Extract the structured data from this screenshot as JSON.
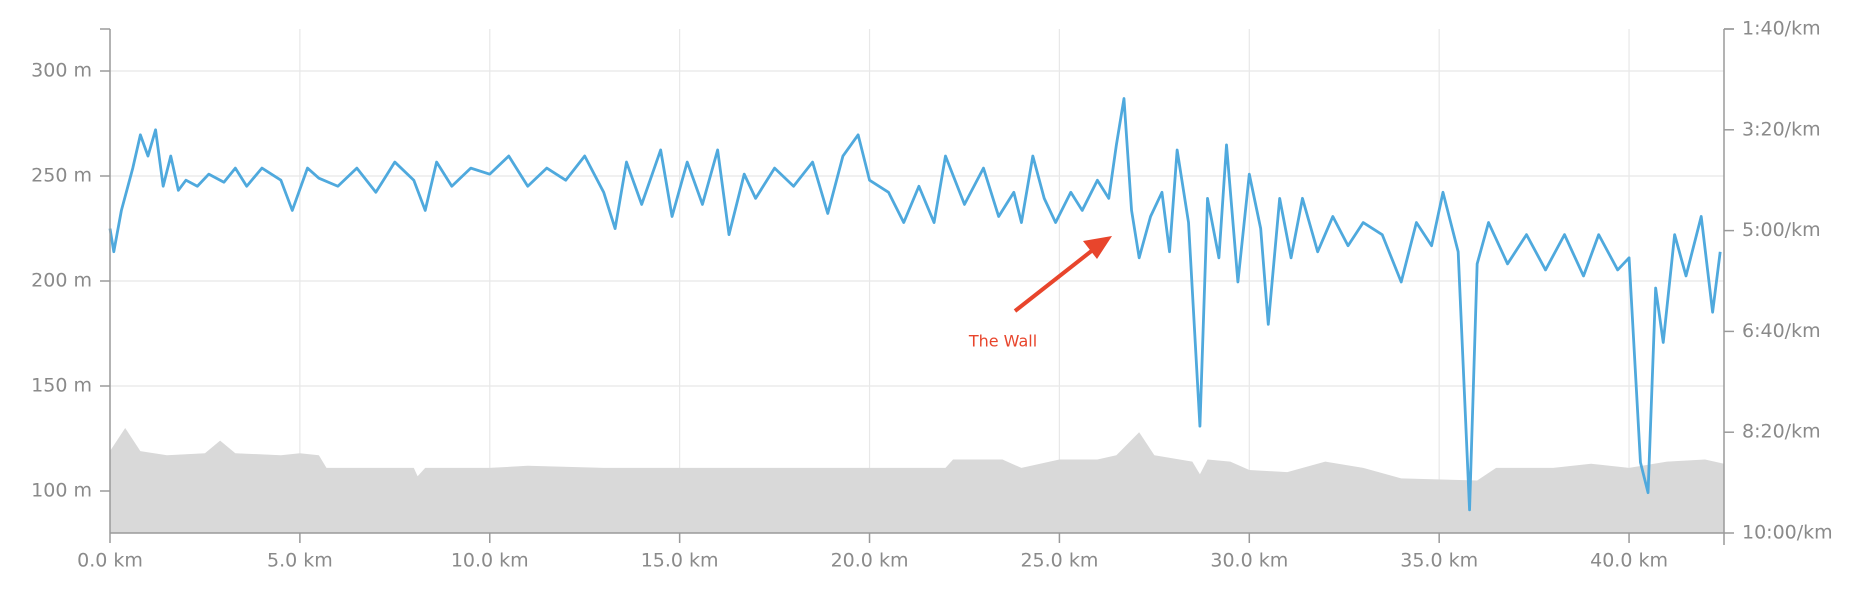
{
  "chart_data": {
    "type": "line",
    "annotations": [
      {
        "text": "The Wall",
        "color": "#e8452c"
      }
    ],
    "grid": true,
    "xlim": [
      0,
      42.5
    ],
    "xticks": [
      {
        "value": 0,
        "label": "0.0 km"
      },
      {
        "value": 5,
        "label": "5.0 km"
      },
      {
        "value": 10,
        "label": "10.0 km"
      },
      {
        "value": 15,
        "label": "15.0 km"
      },
      {
        "value": 20,
        "label": "20.0 km"
      },
      {
        "value": 25,
        "label": "25.0 km"
      },
      {
        "value": 30,
        "label": "30.0 km"
      },
      {
        "value": 35,
        "label": "35.0 km"
      },
      {
        "value": 40,
        "label": "40.0 km"
      }
    ],
    "ylim": [
      80,
      320
    ],
    "yticks": [
      {
        "value": 100,
        "label": "100 m"
      },
      {
        "value": 150,
        "label": "150 m"
      },
      {
        "value": 200,
        "label": "200 m"
      },
      {
        "value": 250,
        "label": "250 m"
      },
      {
        "value": 300,
        "label": "300 m"
      }
    ],
    "y2lim": [
      600,
      100
    ],
    "y2ticks": [
      {
        "value": 600,
        "label": "10:00/km"
      },
      {
        "value": 500,
        "label": "8:20/km"
      },
      {
        "value": 400,
        "label": "6:40/km"
      },
      {
        "value": 300,
        "label": "5:00/km"
      },
      {
        "value": 200,
        "label": "3:20/km"
      },
      {
        "value": 100,
        "label": "1:40/km"
      }
    ],
    "series": [
      {
        "type": "area",
        "color": "#d9d9d9",
        "x": [
          0,
          0.4,
          0.8,
          1.5,
          2.5,
          2.9,
          3.3,
          4.5,
          5.0,
          5.5,
          5.7,
          7.5,
          8.0,
          8.1,
          8.3,
          10.0,
          11.0,
          13.0,
          16.0,
          20.0,
          22.0,
          22.2,
          23.5,
          24.0,
          25.0,
          26.0,
          26.5,
          27.1,
          27.5,
          28.5,
          28.7,
          28.9,
          29.5,
          30.0,
          31.0,
          32.0,
          33.0,
          34.0,
          36.0,
          36.5,
          38.0,
          39.0,
          40.0,
          41.0,
          42.0,
          42.5
        ],
        "values": [
          119,
          130,
          119,
          117,
          118,
          124,
          118,
          117,
          118,
          117,
          111,
          111,
          111,
          107,
          111,
          111,
          112,
          111,
          111,
          111,
          111,
          115,
          115,
          111,
          115,
          115,
          117,
          128,
          117,
          114,
          108,
          115,
          114,
          110,
          109,
          114,
          111,
          106,
          105,
          111,
          111,
          113,
          111,
          114,
          115,
          113
        ]
      },
      {
        "type": "line",
        "axis": "y2",
        "color": "#4fa9dd",
        "x": [
          0,
          0.1,
          0.3,
          0.6,
          0.8,
          1.0,
          1.2,
          1.4,
          1.6,
          1.8,
          2.0,
          2.3,
          2.6,
          3.0,
          3.3,
          3.6,
          4.0,
          4.5,
          4.8,
          5.2,
          5.5,
          6.0,
          6.5,
          7.0,
          7.5,
          8.0,
          8.3,
          8.6,
          9.0,
          9.5,
          10.0,
          10.5,
          11.0,
          11.5,
          12.0,
          12.5,
          13.0,
          13.3,
          13.6,
          14.0,
          14.5,
          14.8,
          15.2,
          15.6,
          16.0,
          16.3,
          16.7,
          17.0,
          17.5,
          18.0,
          18.5,
          18.9,
          19.3,
          19.7,
          20.0,
          20.5,
          20.9,
          21.3,
          21.7,
          22.0,
          22.5,
          23.0,
          23.4,
          23.8,
          24.0,
          24.3,
          24.6,
          24.9,
          25.3,
          25.6,
          26.0,
          26.3,
          26.5,
          26.7,
          26.9,
          27.1,
          27.4,
          27.7,
          27.9,
          28.1,
          28.4,
          28.7,
          28.9,
          29.2,
          29.4,
          29.7,
          30.0,
          30.3,
          30.5,
          30.8,
          31.1,
          31.4,
          31.8,
          32.2,
          32.6,
          33.0,
          33.5,
          34.0,
          34.4,
          34.8,
          35.1,
          35.5,
          35.8,
          36.0,
          36.3,
          36.8,
          37.3,
          37.8,
          38.3,
          38.8,
          39.2,
          39.7,
          40.0,
          40.3,
          40.5,
          40.7,
          40.9,
          41.2,
          41.5,
          41.9,
          42.2,
          42.4
        ],
        "values": [
          298,
          321,
          280,
          238,
          205,
          226,
          200,
          256,
          226,
          260,
          250,
          256,
          244,
          252,
          238,
          256,
          238,
          250,
          280,
          238,
          248,
          256,
          238,
          262,
          232,
          250,
          280,
          232,
          256,
          238,
          244,
          226,
          256,
          238,
          250,
          226,
          262,
          298,
          232,
          274,
          220,
          286,
          232,
          274,
          220,
          304,
          244,
          268,
          238,
          256,
          232,
          283,
          226,
          205,
          250,
          262,
          292,
          256,
          292,
          226,
          274,
          238,
          286,
          262,
          292,
          226,
          268,
          292,
          262,
          280,
          250,
          268,
          215,
          169,
          280,
          327,
          286,
          262,
          321,
          220,
          292,
          494,
          268,
          327,
          215,
          351,
          244,
          298,
          393,
          268,
          327,
          268,
          321,
          286,
          315,
          292,
          304,
          351,
          292,
          315,
          262,
          321,
          577,
          333,
          292,
          333,
          304,
          339,
          304,
          345,
          304,
          339,
          327,
          530,
          560,
          357,
          411,
          304,
          345,
          286,
          381,
          321
        ]
      }
    ]
  }
}
